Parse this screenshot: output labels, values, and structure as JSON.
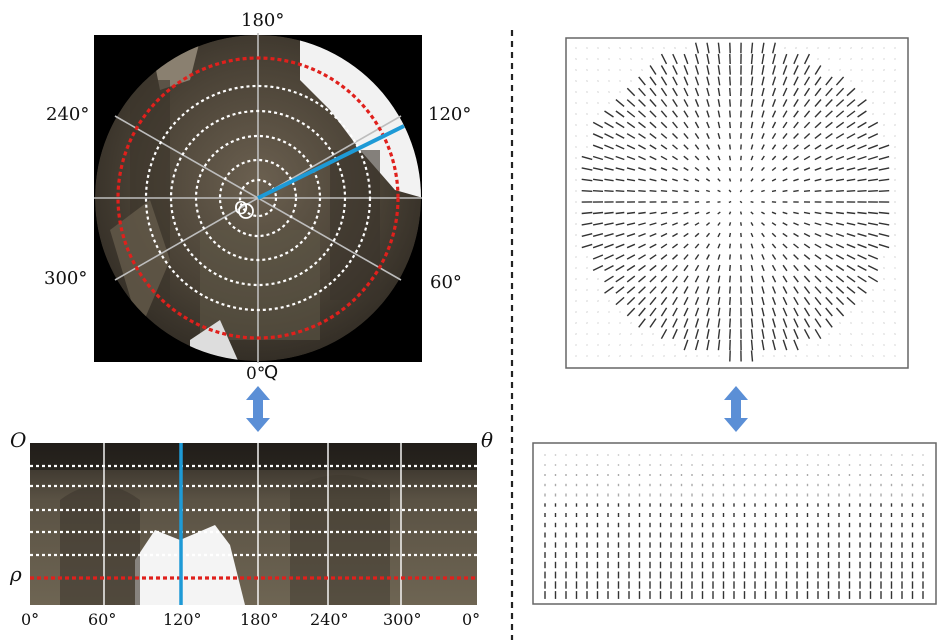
{
  "polar_view": {
    "angle_labels": [
      "180°",
      "120°",
      "240°",
      "60°",
      "300°",
      "0°"
    ],
    "center_label": "O",
    "edge_label": "Q"
  },
  "unwrapped_view": {
    "origin_label": "O",
    "theta_label": "θ",
    "rho_label": "ρ",
    "x_tick_labels": [
      "0°",
      "60°",
      "120°",
      "180°",
      "240°",
      "300°",
      "0°"
    ]
  },
  "colors": {
    "highlight_line": "#1e9ad6",
    "outer_circle": "#e0201c",
    "arrow": "#5b8fd6",
    "vector": "#333333"
  },
  "icons": [
    "double-arrow-icon",
    "double-arrow-icon"
  ]
}
